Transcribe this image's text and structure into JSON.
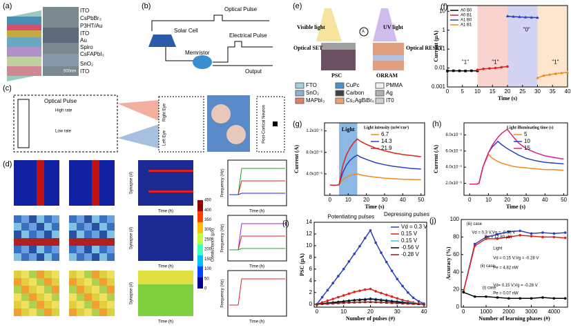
{
  "chart_data": [
    {
      "type": "line",
      "panel": "(f)",
      "xlabel": "Time (s)",
      "ylabel": "Current (μA)",
      "log_y": true,
      "xlim": [
        0,
        40
      ],
      "xticks": [
        0,
        5,
        10,
        15,
        20,
        25,
        30,
        35,
        40
      ],
      "ylim": [
        0.001,
        20
      ],
      "yticks": [
        0.001,
        0.01,
        0.1,
        1,
        10
      ],
      "legend": "upper left",
      "regions": [
        {
          "xlim": [
            10,
            20
          ],
          "color": "#f8c8c0"
        },
        {
          "xlim": [
            20,
            30
          ],
          "color": "#c8c8f0"
        },
        {
          "xlim": [
            30,
            40
          ],
          "color": "#fbe0c0"
        }
      ],
      "annotations": [
        "\"1\"",
        "\"1\"",
        "\"0\"",
        "\"1\""
      ],
      "series": [
        {
          "name": "A0 B0",
          "color": "#000000",
          "marker": "square",
          "x": [
            0,
            2,
            4,
            6,
            8,
            10
          ],
          "values": [
            0.007,
            0.0072,
            0.0071,
            0.007,
            0.0072,
            0.0071
          ]
        },
        {
          "name": "A0 B1",
          "color": "#e0201c",
          "marker": "circle",
          "x": [
            10,
            12,
            14,
            16,
            18,
            20
          ],
          "values": [
            0.008,
            0.009,
            0.0095,
            0.01,
            0.011,
            0.012
          ]
        },
        {
          "name": "A1 B0",
          "color": "#2a3fc0",
          "marker": "triangle",
          "x": [
            20,
            22,
            24,
            26,
            28,
            30
          ],
          "values": [
            5.5,
            5.2,
            5.0,
            4.8,
            4.7,
            4.6
          ]
        },
        {
          "name": "A1 B1",
          "color": "#f08a1c",
          "marker": "triangle",
          "x": [
            30,
            32,
            34,
            36,
            38,
            40
          ],
          "values": [
            0.003,
            0.004,
            0.0045,
            0.005,
            0.0055,
            0.006
          ]
        }
      ]
    },
    {
      "type": "line",
      "panel": "(g)",
      "xlabel": "Time (s)",
      "ylabel": "Current (A)",
      "xlim": [
        -3,
        52
      ],
      "xticks": [
        0,
        10,
        20,
        30,
        40,
        50
      ],
      "ylim": [
        0,
        1.35e-05
      ],
      "yticks": [
        {
          "value": 4e-06,
          "label": "4.0x10⁻⁶"
        },
        {
          "value": 8e-06,
          "label": "8.0x10⁻⁶"
        },
        {
          "value": 1.2e-05,
          "label": "1.2x10⁻⁵"
        }
      ],
      "legend": "upper right",
      "legend_title": "Light intensity (mW/cm²)",
      "regions": [
        {
          "xlim": [
            5,
            15
          ],
          "color": "#6fa8dc",
          "label": "Light"
        }
      ],
      "x": [
        0,
        2,
        4,
        5,
        7,
        9,
        11,
        13,
        15,
        17,
        20,
        25,
        30,
        35,
        40,
        45,
        50
      ],
      "series": [
        {
          "name": "6.7",
          "color": "#f08a1c",
          "values": [
            1.9e-06,
            1.9e-06,
            1.9e-06,
            2e-06,
            2.9e-06,
            3.4e-06,
            3.7e-06,
            3.9e-06,
            4e-06,
            3.8e-06,
            3.6e-06,
            3.4e-06,
            3.2e-06,
            3.1e-06,
            3e-06,
            2.95e-06,
            2.9e-06
          ]
        },
        {
          "name": "14.3",
          "color": "#2a3fc0",
          "values": [
            1.9e-06,
            1.9e-06,
            1.9e-06,
            2e-06,
            4.2e-06,
            5.6e-06,
            6.5e-06,
            7.1e-06,
            7.5e-06,
            7.1e-06,
            6.7e-06,
            6.1e-06,
            5.7e-06,
            5.4e-06,
            5.2e-06,
            5e-06,
            4.9e-06
          ]
        },
        {
          "name": "21.9",
          "color": "#e0201c",
          "values": [
            1.9e-06,
            1.9e-06,
            1.9e-06,
            2e-06,
            5.5e-06,
            7.5e-06,
            8.8e-06,
            9.8e-06,
            1.05e-05,
            1e-05,
            9.5e-06,
            8.8e-06,
            8.3e-06,
            7.9e-06,
            7.6e-06,
            7.4e-06,
            7.2e-06
          ]
        }
      ]
    },
    {
      "type": "line",
      "panel": "(h)",
      "xlabel": "Time (s)",
      "ylabel": "Current (A)",
      "xlim": [
        -3,
        52
      ],
      "xticks": [
        0,
        10,
        20,
        30,
        40,
        50
      ],
      "ylim": [
        5e-07,
        9.5e-06
      ],
      "yticks": [
        {
          "value": 2e-06,
          "label": "2.0x10⁻⁶"
        },
        {
          "value": 4e-06,
          "label": "4.0x10⁻⁶"
        },
        {
          "value": 6e-06,
          "label": "6.0x10⁻⁶"
        },
        {
          "value": 8e-06,
          "label": "8.0x10⁻⁶"
        }
      ],
      "legend": "upper right",
      "legend_title": "Light illuminating time (s)",
      "x": [
        0,
        2,
        4,
        5,
        7,
        10,
        12,
        15,
        17,
        20,
        23,
        26,
        30,
        35,
        40,
        45,
        50
      ],
      "series": [
        {
          "name": "5",
          "color": "#f08a1c",
          "values": [
            1.9e-06,
            1.9e-06,
            1.9e-06,
            2e-06,
            4e-06,
            5.6e-06,
            5.1e-06,
            4.7e-06,
            4.5e-06,
            4.3e-06,
            4.1e-06,
            4e-06,
            3.9e-06,
            3.8e-06,
            3.7e-06,
            3.7e-06,
            3.6e-06
          ]
        },
        {
          "name": "10",
          "color": "#2a3fc0",
          "values": [
            1.9e-06,
            1.9e-06,
            1.9e-06,
            2e-06,
            4e-06,
            5.8e-06,
            6.5e-06,
            7.2e-06,
            6.8e-06,
            6.3e-06,
            5.9e-06,
            5.5e-06,
            5.1e-06,
            4.8e-06,
            4.6e-06,
            4.5e-06,
            4.4e-06
          ]
        },
        {
          "name": "15",
          "color": "#e0207c",
          "values": [
            1.9e-06,
            1.9e-06,
            1.9e-06,
            2e-06,
            4e-06,
            5.8e-06,
            6.7e-06,
            7.7e-06,
            8.2e-06,
            8.7e-06,
            7.8e-06,
            7e-06,
            6.3e-06,
            5.8e-06,
            5.4e-06,
            5.2e-06,
            5e-06
          ]
        }
      ]
    },
    {
      "type": "line",
      "panel": "(i)",
      "xlabel": "Number of pulses (#)",
      "ylabel": "PSC (μA)",
      "xlim": [
        -1,
        41
      ],
      "xticks": [
        0,
        10,
        20,
        30,
        40
      ],
      "ylim": [
        -0.5,
        14
      ],
      "yticks": [
        0,
        2,
        4,
        6,
        8,
        10,
        12,
        14
      ],
      "legend": "upper right",
      "annotations": [
        "Potentiating pulses",
        "Depressing pulses"
      ],
      "x": [
        0,
        2,
        4,
        6,
        8,
        10,
        12,
        14,
        16,
        18,
        20,
        22,
        24,
        26,
        28,
        30,
        32,
        34,
        36,
        38,
        40
      ],
      "series": [
        {
          "name": "Vd = 0.3 V",
          "color": "#2a3fc0",
          "marker": "circle",
          "values": [
            0,
            1.2,
            2.4,
            3.6,
            4.8,
            6,
            7.3,
            8.6,
            9.9,
            11.3,
            12.6,
            10.5,
            8.8,
            7.2,
            5.7,
            4.3,
            3.1,
            2,
            1.1,
            0.5,
            0.1
          ]
        },
        {
          "name": "0.15 V",
          "color": "#e0201c",
          "marker": "circle",
          "values": [
            0,
            0.3,
            0.6,
            0.9,
            1.2,
            1.5,
            1.8,
            2.1,
            2.3,
            2.5,
            2.6,
            2.2,
            1.9,
            1.6,
            1.3,
            1,
            0.7,
            0.5,
            0.3,
            0.1,
            0
          ]
        },
        {
          "name": "0.15 V",
          "color": "#56b4e9",
          "marker": "circle",
          "values": [
            0,
            0.1,
            0.2,
            0.3,
            0.4,
            0.5,
            0.6,
            0.7,
            0.8,
            0.9,
            1,
            0.9,
            0.8,
            0.7,
            0.6,
            0.5,
            0.4,
            0.3,
            0.2,
            0.1,
            0
          ]
        },
        {
          "name": "-0.56 V",
          "color": "#000000",
          "marker": "triangle",
          "values": [
            0,
            0.1,
            0.2,
            0.3,
            0.4,
            0.5,
            0.6,
            0.7,
            0.75,
            0.8,
            0.9,
            0.8,
            0.7,
            0.6,
            0.5,
            0.4,
            0.3,
            0.2,
            0.1,
            0.05,
            0
          ]
        },
        {
          "name": "-0.28 V",
          "color": "#8b1a1a",
          "marker": "triangle",
          "values": [
            0,
            0.05,
            0.1,
            0.15,
            0.2,
            0.25,
            0.3,
            0.32,
            0.35,
            0.38,
            0.4,
            0.36,
            0.32,
            0.28,
            0.24,
            0.2,
            0.16,
            0.12,
            0.08,
            0.04,
            0
          ]
        }
      ]
    },
    {
      "type": "line",
      "panel": "(j)",
      "xlabel": "Number of learning phases (#)",
      "ylabel": "Accuracy (%)",
      "xlim": [
        -100,
        4600
      ],
      "xticks": [
        0,
        1000,
        2000,
        3000,
        4000
      ],
      "ylim": [
        0,
        100
      ],
      "yticks": [
        0,
        20,
        40,
        60,
        80,
        100
      ],
      "annotations": [
        "(iii) case",
        "Vd = 0.3 V,Vg = -0.56 V",
        "Pe = 12.80 μW",
        "Light",
        "(ii) case",
        "Vd = 0.15 V,Vg = -0.28 V",
        "Pe = 4.82 nW",
        "(i) case",
        "Vd= 0.15 V,Vg = -0.28 V",
        "Pe = 0.07 nW"
      ],
      "x": [
        0,
        500,
        1000,
        1500,
        2000,
        2500,
        3000,
        3500,
        4000,
        4500
      ],
      "series": [
        {
          "color": "#2a3fc0",
          "marker": "circle",
          "values": [
            18,
            72,
            80,
            83,
            86,
            87,
            84,
            85,
            84,
            85
          ]
        },
        {
          "color": "#e0201c",
          "marker": "circle",
          "values": [
            18,
            70,
            78,
            78,
            80,
            82,
            81,
            80,
            80,
            79
          ]
        },
        {
          "color": "#000000",
          "marker": "circle",
          "values": [
            17,
            12,
            12,
            11,
            10,
            10,
            10,
            11,
            10,
            10
          ]
        }
      ]
    }
  ],
  "diagrams": {
    "a": {
      "panel": "(a)",
      "layers": [
        "ITO",
        "CsPbBr₃",
        "P3HT/Au",
        "ITO",
        "Au",
        "Spiro",
        "CsFAPbI₃",
        "SnO₂",
        "ITO"
      ],
      "scale": "500nm"
    },
    "b": {
      "panel": "(b)",
      "optical": "Optical Pulse",
      "solar": "Solar Cell",
      "memristor": "Memristor",
      "electrical": "Electrical Pulse",
      "output": "Output"
    },
    "c": {
      "panel": "(c)",
      "optical": "Optical Pulse",
      "high": "High rate",
      "low": "Low rate",
      "right": "Right Eye",
      "left": "Left Eye",
      "neuron": "Post-Cortical Neuron"
    },
    "d": {
      "panel": "(d)",
      "synapse": "Synapse (#)",
      "time": "Time (h)",
      "frequency": "Frequency (Hz)",
      "conductance": "Conductance (μS)",
      "colorbar_ticks": [
        "0",
        "50",
        "100",
        "150",
        "200",
        "250",
        "300",
        "350",
        "400",
        "450"
      ]
    },
    "e": {
      "panel": "(e)",
      "visible": "Visible light",
      "uv": "UV light",
      "set": "Optical SET",
      "reset": "Optical RESET",
      "psc": "PSC",
      "orram": "ORRAM",
      "meter": "A",
      "legend": [
        "FTO",
        "CuPc",
        "PMMA",
        "SnO₂",
        "Carbon",
        "Ag",
        "MAPbI₃",
        "Cs₂AgBiBr₆",
        "IT0"
      ]
    }
  }
}
